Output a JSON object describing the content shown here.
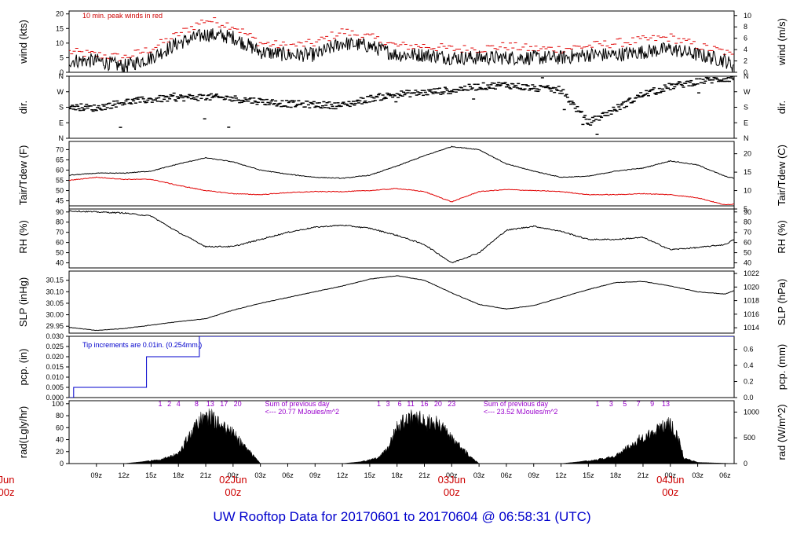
{
  "title": "UW Rooftop Data for 20170601  to  20170604 @ 06:58:31  (UTC)",
  "colors": {
    "black": "#000000",
    "red": "#e00000",
    "blue": "#0000cc",
    "purple": "#9900cc"
  },
  "time_axis": {
    "hour_labels": [
      "09z",
      "12z",
      "15z",
      "18z",
      "21z",
      "00z",
      "03z",
      "06z",
      "09z",
      "12z",
      "15z",
      "18z",
      "21z",
      "00z",
      "03z",
      "06z",
      "09z",
      "12z",
      "15z",
      "18z",
      "21z",
      "00z",
      "03z",
      "06z"
    ],
    "hour_values": [
      9,
      12,
      15,
      18,
      21,
      24,
      27,
      30,
      33,
      36,
      39,
      42,
      45,
      48,
      51,
      54,
      57,
      60,
      63,
      66,
      69,
      72,
      75,
      78
    ],
    "day_labels": [
      {
        "date": "Jun",
        "hour": "00z",
        "pos": 0
      },
      {
        "date": "02Jun",
        "hour": "00z",
        "pos": 24
      },
      {
        "date": "03Jun",
        "hour": "00z",
        "pos": 48
      },
      {
        "date": "04Jun",
        "hour": "00z",
        "pos": 72
      }
    ],
    "range_hours": [
      6,
      79
    ]
  },
  "chart_data": [
    {
      "type": "line",
      "id": "wind",
      "left_label": "wind (kts)",
      "right_label": "wind (m/s)",
      "annotation": "10 min. peak winds in red",
      "left_ticks": [
        "0",
        "5",
        "10",
        "15",
        "20"
      ],
      "right_ticks": [
        "0",
        "2",
        "4",
        "6",
        "8",
        "10"
      ],
      "ylim": [
        0,
        21
      ],
      "series": [
        {
          "name": "10 min. peak winds",
          "color": "#e00000",
          "style": "dash",
          "x": [
            6,
            9,
            12,
            15,
            18,
            21,
            24,
            27,
            30,
            33,
            36,
            39,
            42,
            45,
            48,
            51,
            54,
            57,
            60,
            63,
            66,
            69,
            72,
            75,
            78,
            79
          ],
          "y": [
            7,
            6,
            5,
            8,
            13,
            18,
            16,
            10,
            9,
            10,
            14,
            12,
            9,
            9,
            8,
            8,
            9,
            8,
            8,
            9,
            10,
            11,
            12,
            9,
            7,
            5
          ]
        },
        {
          "name": "",
          "color": "#000000",
          "style": "line",
          "x": [
            6,
            9,
            12,
            15,
            18,
            21,
            24,
            27,
            30,
            33,
            36,
            39,
            42,
            45,
            48,
            51,
            54,
            57,
            60,
            63,
            66,
            69,
            72,
            75,
            78,
            79
          ],
          "y": [
            4,
            4,
            2,
            5,
            10,
            13,
            12,
            7,
            6,
            6,
            10,
            9,
            6,
            6,
            5,
            5,
            5,
            5,
            5,
            6,
            6,
            7,
            8,
            6,
            4,
            2
          ]
        }
      ]
    },
    {
      "type": "scatter",
      "id": "dir",
      "left_label": "dir.",
      "right_label": "dir.",
      "left_ticks": [
        "N",
        "E",
        "S",
        "W",
        "N"
      ],
      "right_ticks": [
        "N",
        "E",
        "S",
        "W",
        "N"
      ],
      "ylim": [
        0,
        360
      ],
      "series": [
        {
          "name": "",
          "color": "#000000",
          "x": [
            6,
            9,
            12,
            15,
            18,
            21,
            24,
            27,
            30,
            33,
            36,
            39,
            42,
            45,
            48,
            51,
            54,
            57,
            60,
            63,
            66,
            69,
            72,
            75,
            78,
            79
          ],
          "y": [
            185,
            175,
            210,
            225,
            235,
            240,
            230,
            215,
            200,
            195,
            190,
            230,
            255,
            265,
            280,
            300,
            310,
            290,
            280,
            90,
            170,
            255,
            300,
            330,
            345,
            350
          ]
        }
      ]
    },
    {
      "type": "line",
      "id": "temp",
      "left_label": "Tair/Tdew (F)",
      "right_label": "Tair/Tdew (C)",
      "left_ticks": [
        "45",
        "50",
        "55",
        "60",
        "65",
        "70"
      ],
      "right_ticks": [
        "5",
        "10",
        "15",
        "20"
      ],
      "ylim": [
        41,
        74
      ],
      "series": [
        {
          "name": "Tair",
          "color": "#000000",
          "x": [
            6,
            9,
            12,
            15,
            18,
            21,
            24,
            27,
            30,
            33,
            36,
            39,
            42,
            45,
            48,
            51,
            54,
            57,
            60,
            63,
            66,
            69,
            72,
            75,
            78,
            79
          ],
          "y": [
            57.5,
            58.5,
            58.5,
            59.5,
            63,
            66,
            64,
            60,
            58,
            56.5,
            56,
            57.5,
            62,
            67,
            71.5,
            70,
            63,
            59.5,
            56.5,
            57,
            59.5,
            61,
            64.5,
            62.5,
            57,
            56
          ]
        },
        {
          "name": "Tdew",
          "color": "#e00000",
          "x": [
            6,
            9,
            12,
            15,
            18,
            21,
            24,
            27,
            30,
            33,
            36,
            39,
            42,
            45,
            48,
            51,
            54,
            57,
            60,
            63,
            66,
            69,
            72,
            75,
            78,
            79
          ],
          "y": [
            55,
            56.5,
            55.5,
            55.5,
            52.5,
            50,
            48.5,
            48,
            49,
            49.5,
            49.5,
            50,
            51,
            49.5,
            44.5,
            49.5,
            50.5,
            50,
            49.5,
            48,
            48,
            48.5,
            48,
            46.5,
            43,
            43.5
          ]
        }
      ]
    },
    {
      "type": "line",
      "id": "rh",
      "left_label": "RH (%)",
      "right_label": "RH (%)",
      "left_ticks": [
        "40",
        "50",
        "60",
        "70",
        "80",
        "90"
      ],
      "right_ticks": [
        "40",
        "50",
        "60",
        "70",
        "80",
        "90"
      ],
      "ylim": [
        35,
        96
      ],
      "series": [
        {
          "name": "",
          "color": "#000000",
          "x": [
            6,
            9,
            12,
            15,
            18,
            21,
            24,
            27,
            30,
            33,
            36,
            39,
            42,
            45,
            48,
            51,
            54,
            57,
            60,
            63,
            66,
            69,
            72,
            75,
            78,
            79
          ],
          "y": [
            91,
            90,
            89,
            86,
            70,
            56,
            56,
            63,
            70,
            75,
            77,
            74,
            67,
            58,
            40,
            50,
            72,
            76,
            71,
            63,
            63,
            65,
            53,
            55,
            58,
            63
          ]
        }
      ]
    },
    {
      "type": "line",
      "id": "slp",
      "left_label": "SLP (inHg)",
      "right_label": "SLP (hPa)",
      "left_ticks": [
        "29.95",
        "30.00",
        "30.05",
        "30.10",
        "30.15"
      ],
      "right_ticks": [
        "1014",
        "1016",
        "1018",
        "1020",
        "1022"
      ],
      "ylim": [
        29.92,
        30.19
      ],
      "series": [
        {
          "name": "",
          "color": "#000000",
          "x": [
            6,
            9,
            12,
            15,
            18,
            21,
            24,
            27,
            30,
            33,
            36,
            39,
            42,
            45,
            48,
            51,
            54,
            57,
            60,
            63,
            66,
            69,
            72,
            75,
            78,
            79
          ],
          "y": [
            29.945,
            29.932,
            29.94,
            29.955,
            29.97,
            29.983,
            30.02,
            30.05,
            30.075,
            30.1,
            30.125,
            30.155,
            30.17,
            30.15,
            30.095,
            30.045,
            30.025,
            30.04,
            30.075,
            30.11,
            30.14,
            30.145,
            30.125,
            30.1,
            30.09,
            30.105
          ]
        }
      ]
    },
    {
      "type": "line",
      "id": "pcp",
      "left_label": "pcp. (in)",
      "right_label": "pcp. (mm)",
      "annotation": "Tip increments are 0.01in. (0.254mm.)",
      "left_ticks": [
        "0.000",
        "0.005",
        "0.010",
        "0.015",
        "0.020",
        "0.025",
        "0.030"
      ],
      "right_ticks": [
        "0.0",
        "0.2",
        "0.4",
        "0.6"
      ],
      "ylim": [
        0,
        0.03
      ],
      "series": [
        {
          "name": "",
          "color": "#0000cc",
          "style": "step",
          "x": [
            6,
            6.5,
            6.5,
            14.5,
            14.5,
            20.3,
            20.3,
            79
          ],
          "y": [
            0,
            0,
            0.005,
            0.005,
            0.02,
            0.02,
            0.03,
            0.03
          ]
        }
      ]
    },
    {
      "type": "area",
      "id": "rad",
      "left_label": "rad(Lgly/hr)",
      "right_label": "rad (W/m^2)",
      "left_ticks": [
        "0",
        "20",
        "40",
        "60",
        "80",
        "100"
      ],
      "right_ticks": [
        "0",
        "500",
        "1000"
      ],
      "ylim": [
        0,
        105
      ],
      "day_hours": [
        {
          "labels": [
            "1",
            "2",
            "4",
            "8",
            "13",
            "17",
            "20"
          ],
          "positions": [
            16,
            17,
            18,
            20,
            21.5,
            23,
            24.5
          ]
        },
        {
          "labels": [
            "1",
            "3",
            "6",
            "11",
            "16",
            "20",
            "23"
          ],
          "positions": [
            40,
            41,
            42.3,
            43.5,
            45,
            46.5,
            48
          ]
        },
        {
          "labels": [
            "1",
            "3",
            "5",
            "7",
            "9",
            "13"
          ],
          "positions": [
            64,
            65.5,
            67,
            68.5,
            70,
            71.5
          ]
        }
      ],
      "sums": [
        {
          "line1": "Sum of previous day",
          "line2": "<--- 20.77 MJoules/m^2"
        },
        {
          "line1": "Sum of previous day",
          "line2": "<--- 23.52 MJoules/m^2"
        }
      ],
      "series": [
        {
          "name": "",
          "color": "#000000",
          "x": [
            6,
            12,
            14,
            16,
            18,
            19,
            20,
            21,
            22,
            23,
            24,
            25,
            26,
            27,
            33,
            36,
            38,
            40,
            41,
            42,
            43,
            44,
            45,
            46,
            47,
            48,
            49,
            50,
            51,
            57,
            60,
            62,
            64,
            66,
            67,
            68,
            69,
            70,
            71,
            72,
            73,
            73.5,
            74,
            75,
            79
          ],
          "y": [
            0,
            0,
            3,
            8,
            20,
            50,
            80,
            98,
            88,
            72,
            60,
            40,
            20,
            0,
            0,
            0,
            3,
            12,
            30,
            75,
            90,
            100,
            80,
            85,
            70,
            50,
            35,
            15,
            0,
            0,
            0,
            3,
            8,
            15,
            30,
            40,
            55,
            60,
            75,
            80,
            45,
            10,
            8,
            2,
            0
          ]
        }
      ]
    }
  ]
}
